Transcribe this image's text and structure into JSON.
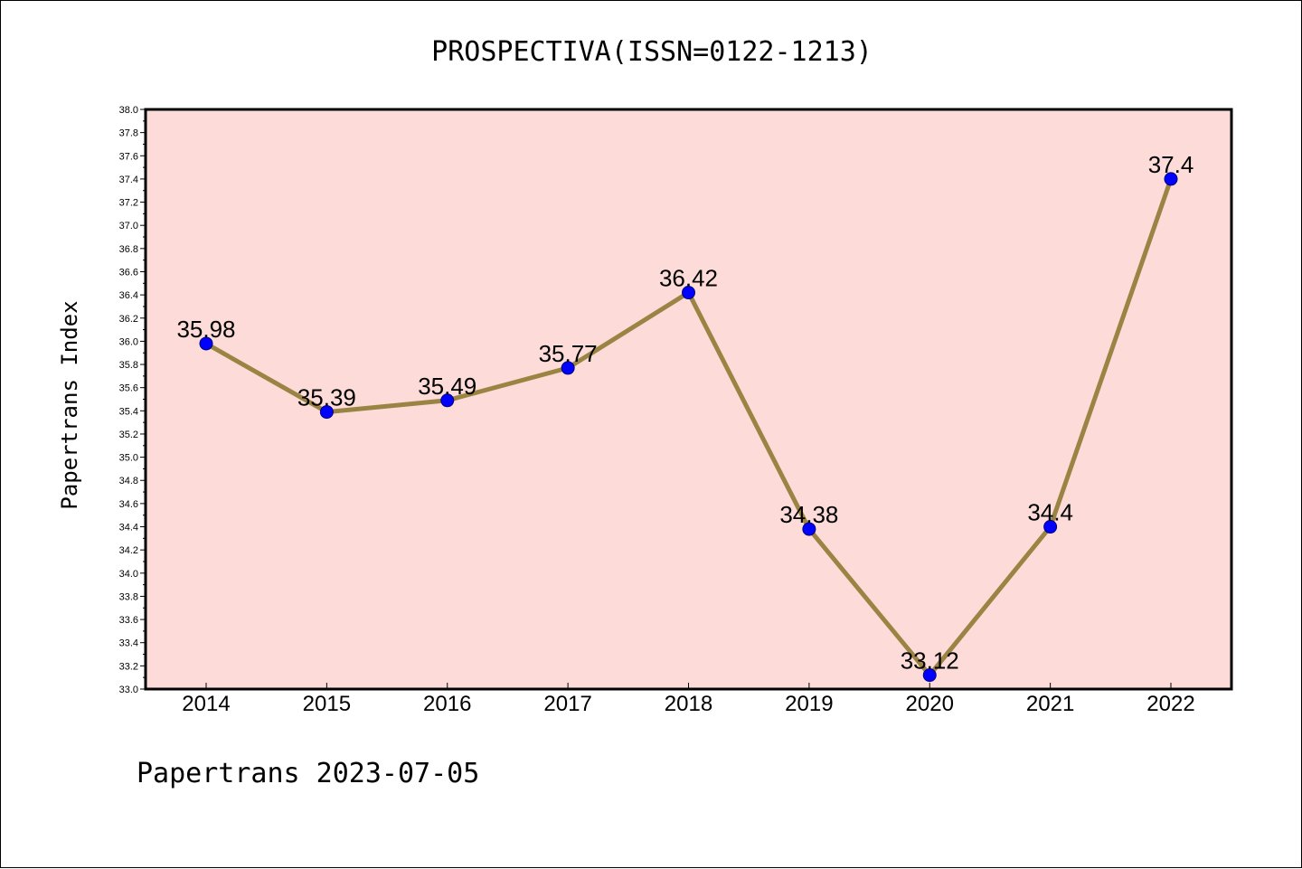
{
  "chart_data": {
    "type": "line",
    "title": "PROSPECTIVA(ISSN=0122-1213)",
    "xlabel": "",
    "ylabel": "Papertrans Index",
    "footer": "Papertrans 2023-07-05",
    "categories": [
      "2014",
      "2015",
      "2016",
      "2017",
      "2018",
      "2019",
      "2020",
      "2021",
      "2022"
    ],
    "series": [
      {
        "values": [
          35.98,
          35.39,
          35.49,
          35.77,
          36.42,
          34.38,
          33.12,
          34.4,
          37.4
        ],
        "labels": [
          "35.98",
          "35.39",
          "35.49",
          "35.77",
          "36.42",
          "34.38",
          "33.12",
          "34.4",
          "37.4"
        ]
      }
    ],
    "ylim": [
      33.0,
      38.0
    ],
    "ytick_step": 0.2,
    "grid": false,
    "legend": "none",
    "colors": {
      "plot_background": "#fddbd8",
      "line": "#9a8444",
      "marker": "#0000ff",
      "axis": "#000000"
    }
  }
}
